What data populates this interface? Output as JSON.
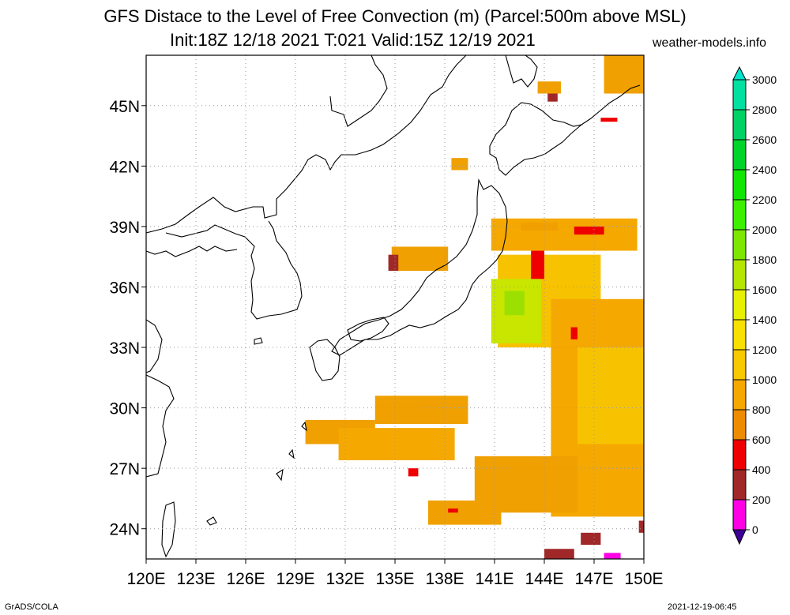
{
  "header": {
    "title": "GFS Distace to the Level of Free Convection (m) (Parcel:500m above MSL)",
    "subtitle": "Init:18Z 12/18 2021 T:021 Valid:15Z 12/19 2021",
    "site": "weather-models.info"
  },
  "footer": {
    "left": "GrADS/COLA",
    "right": "2021-12-19-06:45"
  },
  "map": {
    "lon_range": [
      120,
      150
    ],
    "lat_range": [
      22.5,
      47.5
    ],
    "lon_labels": [
      {
        "value": 120,
        "label": "120E"
      },
      {
        "value": 123,
        "label": "123E"
      },
      {
        "value": 126,
        "label": "126E"
      },
      {
        "value": 129,
        "label": "129E"
      },
      {
        "value": 132,
        "label": "132E"
      },
      {
        "value": 135,
        "label": "135E"
      },
      {
        "value": 138,
        "label": "138E"
      },
      {
        "value": 141,
        "label": "141E"
      },
      {
        "value": 144,
        "label": "144E"
      },
      {
        "value": 147,
        "label": "147E"
      },
      {
        "value": 150,
        "label": "150E"
      }
    ],
    "lat_labels": [
      {
        "value": 45,
        "label": "45N"
      },
      {
        "value": 42,
        "label": "42N"
      },
      {
        "value": 39,
        "label": "39N"
      },
      {
        "value": 36,
        "label": "36N"
      },
      {
        "value": 33,
        "label": "33N"
      },
      {
        "value": 30,
        "label": "30N"
      },
      {
        "value": 27,
        "label": "27N"
      },
      {
        "value": 24,
        "label": "24N"
      }
    ],
    "fields": [
      {
        "level": 1000,
        "color": "#f5a800",
        "lon": [
          140.8,
          149.6
        ],
        "lat": [
          37.8,
          39.4
        ]
      },
      {
        "level": 1100,
        "color": "#f7c200",
        "lon": [
          141.2,
          147.4
        ],
        "lat": [
          33.0,
          37.6
        ]
      },
      {
        "level": 1500,
        "color": "#c8e600",
        "lon": [
          140.8,
          143.8
        ],
        "lat": [
          33.2,
          36.4
        ]
      },
      {
        "level": 1700,
        "color": "#9be000",
        "lon": [
          141.6,
          142.8
        ],
        "lat": [
          34.6,
          35.8
        ]
      },
      {
        "level": 1000,
        "color": "#f5a800",
        "lon": [
          144.4,
          150.0
        ],
        "lat": [
          24.6,
          35.4
        ]
      },
      {
        "level": 1200,
        "color": "#f7c200",
        "lon": [
          146.0,
          150.0
        ],
        "lat": [
          28.2,
          33.0
        ]
      },
      {
        "level": 900,
        "color": "#f0a000",
        "lon": [
          139.8,
          146.0
        ],
        "lat": [
          24.8,
          27.6
        ]
      },
      {
        "level": 900,
        "color": "#f0a000",
        "lon": [
          129.6,
          133.8
        ],
        "lat": [
          28.2,
          29.4
        ]
      },
      {
        "level": 1000,
        "color": "#f5a800",
        "lon": [
          131.6,
          138.6
        ],
        "lat": [
          27.4,
          29.0
        ]
      },
      {
        "level": 900,
        "color": "#f0a000",
        "lon": [
          133.8,
          139.4
        ],
        "lat": [
          29.2,
          30.6
        ]
      },
      {
        "level": 900,
        "color": "#f0a000",
        "lon": [
          137.0,
          141.4
        ],
        "lat": [
          24.2,
          25.4
        ]
      },
      {
        "level": 900,
        "color": "#f0a000",
        "lon": [
          134.8,
          138.2
        ],
        "lat": [
          36.8,
          38.0
        ]
      },
      {
        "level": 900,
        "color": "#f0a000",
        "lon": [
          147.6,
          150.0
        ],
        "lat": [
          45.6,
          47.5
        ]
      },
      {
        "level": 900,
        "color": "#f0a000",
        "lon": [
          143.6,
          145.0
        ],
        "lat": [
          45.6,
          46.2
        ]
      },
      {
        "level": 900,
        "color": "#f0a000",
        "lon": [
          138.4,
          139.4
        ],
        "lat": [
          41.8,
          42.4
        ]
      },
      {
        "level": 900,
        "color": "#f0a000",
        "lon": [
          142.6,
          144.8
        ],
        "lat": [
          38.8,
          39.2
        ]
      },
      {
        "level": 500,
        "color": "#ee0000",
        "lon": [
          143.2,
          144.0
        ],
        "lat": [
          36.4,
          37.8
        ]
      },
      {
        "level": 500,
        "color": "#ee0000",
        "lon": [
          145.8,
          147.6
        ],
        "lat": [
          38.6,
          39.0
        ]
      },
      {
        "level": 500,
        "color": "#ee0000",
        "lon": [
          145.6,
          146.0
        ],
        "lat": [
          33.4,
          34.0
        ]
      },
      {
        "level": 500,
        "color": "#ee0000",
        "lon": [
          135.8,
          136.4
        ],
        "lat": [
          26.6,
          27.0
        ]
      },
      {
        "level": 500,
        "color": "#ee0000",
        "lon": [
          138.2,
          138.8
        ],
        "lat": [
          24.8,
          25.0
        ]
      },
      {
        "level": 500,
        "color": "#ee0000",
        "lon": [
          147.4,
          148.4
        ],
        "lat": [
          44.2,
          44.4
        ]
      },
      {
        "level": 300,
        "color": "#a02828",
        "lon": [
          134.6,
          135.2
        ],
        "lat": [
          36.8,
          37.6
        ]
      },
      {
        "level": 300,
        "color": "#a02828",
        "lon": [
          144.2,
          144.8
        ],
        "lat": [
          45.2,
          45.6
        ]
      },
      {
        "level": 300,
        "color": "#a02828",
        "lon": [
          144.0,
          145.8
        ],
        "lat": [
          22.5,
          23.0
        ]
      },
      {
        "level": 300,
        "color": "#a02828",
        "lon": [
          146.2,
          147.4
        ],
        "lat": [
          23.2,
          23.8
        ]
      },
      {
        "level": 300,
        "color": "#a02828",
        "lon": [
          149.7,
          150.0
        ],
        "lat": [
          23.8,
          24.4
        ]
      },
      {
        "level": 100,
        "color": "#ff00e6",
        "lon": [
          147.6,
          148.6
        ],
        "lat": [
          22.5,
          22.8
        ]
      }
    ]
  },
  "colorbar": {
    "levels": [
      {
        "label": "3000",
        "color": "#00e6cc"
      },
      {
        "label": "2800",
        "color": "#00e0a0"
      },
      {
        "label": "2600",
        "color": "#00d266"
      },
      {
        "label": "2400",
        "color": "#00d42a"
      },
      {
        "label": "2200",
        "color": "#10e600"
      },
      {
        "label": "2000",
        "color": "#3cf000"
      },
      {
        "label": "1800",
        "color": "#7ee600"
      },
      {
        "label": "1600",
        "color": "#b4e600"
      },
      {
        "label": "1400",
        "color": "#e6f000"
      },
      {
        "label": "1200",
        "color": "#f8e000"
      },
      {
        "label": "1000",
        "color": "#f8c800"
      },
      {
        "label": "800",
        "color": "#f5a800"
      },
      {
        "label": "600",
        "color": "#ee8c00"
      },
      {
        "label": "400",
        "color": "#ee0000"
      },
      {
        "label": "200",
        "color": "#a02828"
      },
      {
        "label": "0",
        "color": "#ff00e6"
      }
    ],
    "top_color": "#00e6cc",
    "bottom_color": "#3c0096"
  }
}
